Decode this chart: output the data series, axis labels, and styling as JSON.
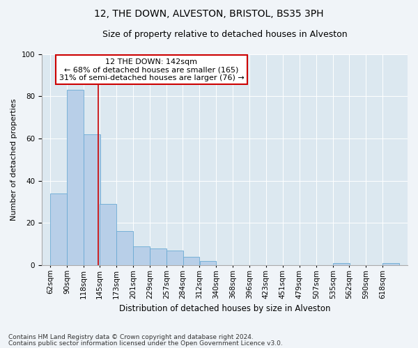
{
  "title": "12, THE DOWN, ALVESTON, BRISTOL, BS35 3PH",
  "subtitle": "Size of property relative to detached houses in Alveston",
  "xlabel": "Distribution of detached houses by size in Alveston",
  "ylabel": "Number of detached properties",
  "footnote1": "Contains HM Land Registry data © Crown copyright and database right 2024.",
  "footnote2": "Contains public sector information licensed under the Open Government Licence v3.0.",
  "annotation_line1": "12 THE DOWN: 142sqm",
  "annotation_line2": "← 68% of detached houses are smaller (165)",
  "annotation_line3": "31% of semi-detached houses are larger (76) →",
  "property_size": 142,
  "bar_color": "#b8cfe8",
  "bar_edge_color": "#6aaad4",
  "vline_color": "#cc0000",
  "annotation_box_edge_color": "#cc0000",
  "bins": [
    62,
    90,
    118,
    145,
    173,
    201,
    229,
    257,
    284,
    312,
    340,
    368,
    396,
    423,
    451,
    479,
    507,
    535,
    562,
    590,
    618
  ],
  "bin_labels": [
    "62sqm",
    "90sqm",
    "118sqm",
    "145sqm",
    "173sqm",
    "201sqm",
    "229sqm",
    "257sqm",
    "284sqm",
    "312sqm",
    "340sqm",
    "368sqm",
    "396sqm",
    "423sqm",
    "451sqm",
    "479sqm",
    "507sqm",
    "535sqm",
    "562sqm",
    "590sqm",
    "618sqm"
  ],
  "counts": [
    34,
    83,
    62,
    29,
    16,
    9,
    8,
    7,
    4,
    2,
    0,
    0,
    0,
    0,
    0,
    0,
    0,
    1,
    0,
    0,
    1
  ],
  "ylim": [
    0,
    100
  ],
  "yticks": [
    0,
    20,
    40,
    60,
    80,
    100
  ],
  "fig_bg_color": "#f0f4f8",
  "plot_bg_color": "#dce8f0",
  "title_fontsize": 10,
  "subtitle_fontsize": 9,
  "xlabel_fontsize": 8.5,
  "ylabel_fontsize": 8,
  "tick_fontsize": 7.5,
  "footnote_fontsize": 6.5,
  "annotation_fontsize": 8
}
